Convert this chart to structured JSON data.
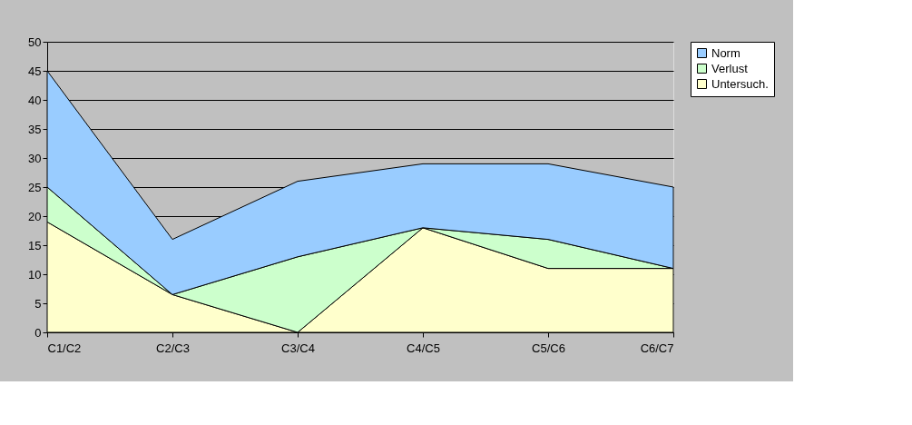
{
  "chart_data": {
    "type": "area",
    "stacked": true,
    "categories": [
      "C1/C2",
      "C2/C3",
      "C3/C4",
      "C4/C5",
      "C5/C6",
      "C6/C7"
    ],
    "series": [
      {
        "name": "Untersuch.",
        "color": "#ffffcc",
        "values": [
          19,
          6.5,
          0,
          18,
          11,
          11
        ]
      },
      {
        "name": "Verlust",
        "color": "#ccffcc",
        "values": [
          6,
          0,
          13,
          0,
          5,
          0
        ]
      },
      {
        "name": "Norm",
        "color": "#99ccff",
        "values": [
          20,
          9.5,
          13,
          11,
          13,
          14
        ]
      }
    ],
    "ylim": [
      0,
      50
    ],
    "yticks": [
      0,
      5,
      10,
      15,
      20,
      25,
      30,
      35,
      40,
      45,
      50
    ],
    "grid": "y",
    "legend": "right"
  }
}
